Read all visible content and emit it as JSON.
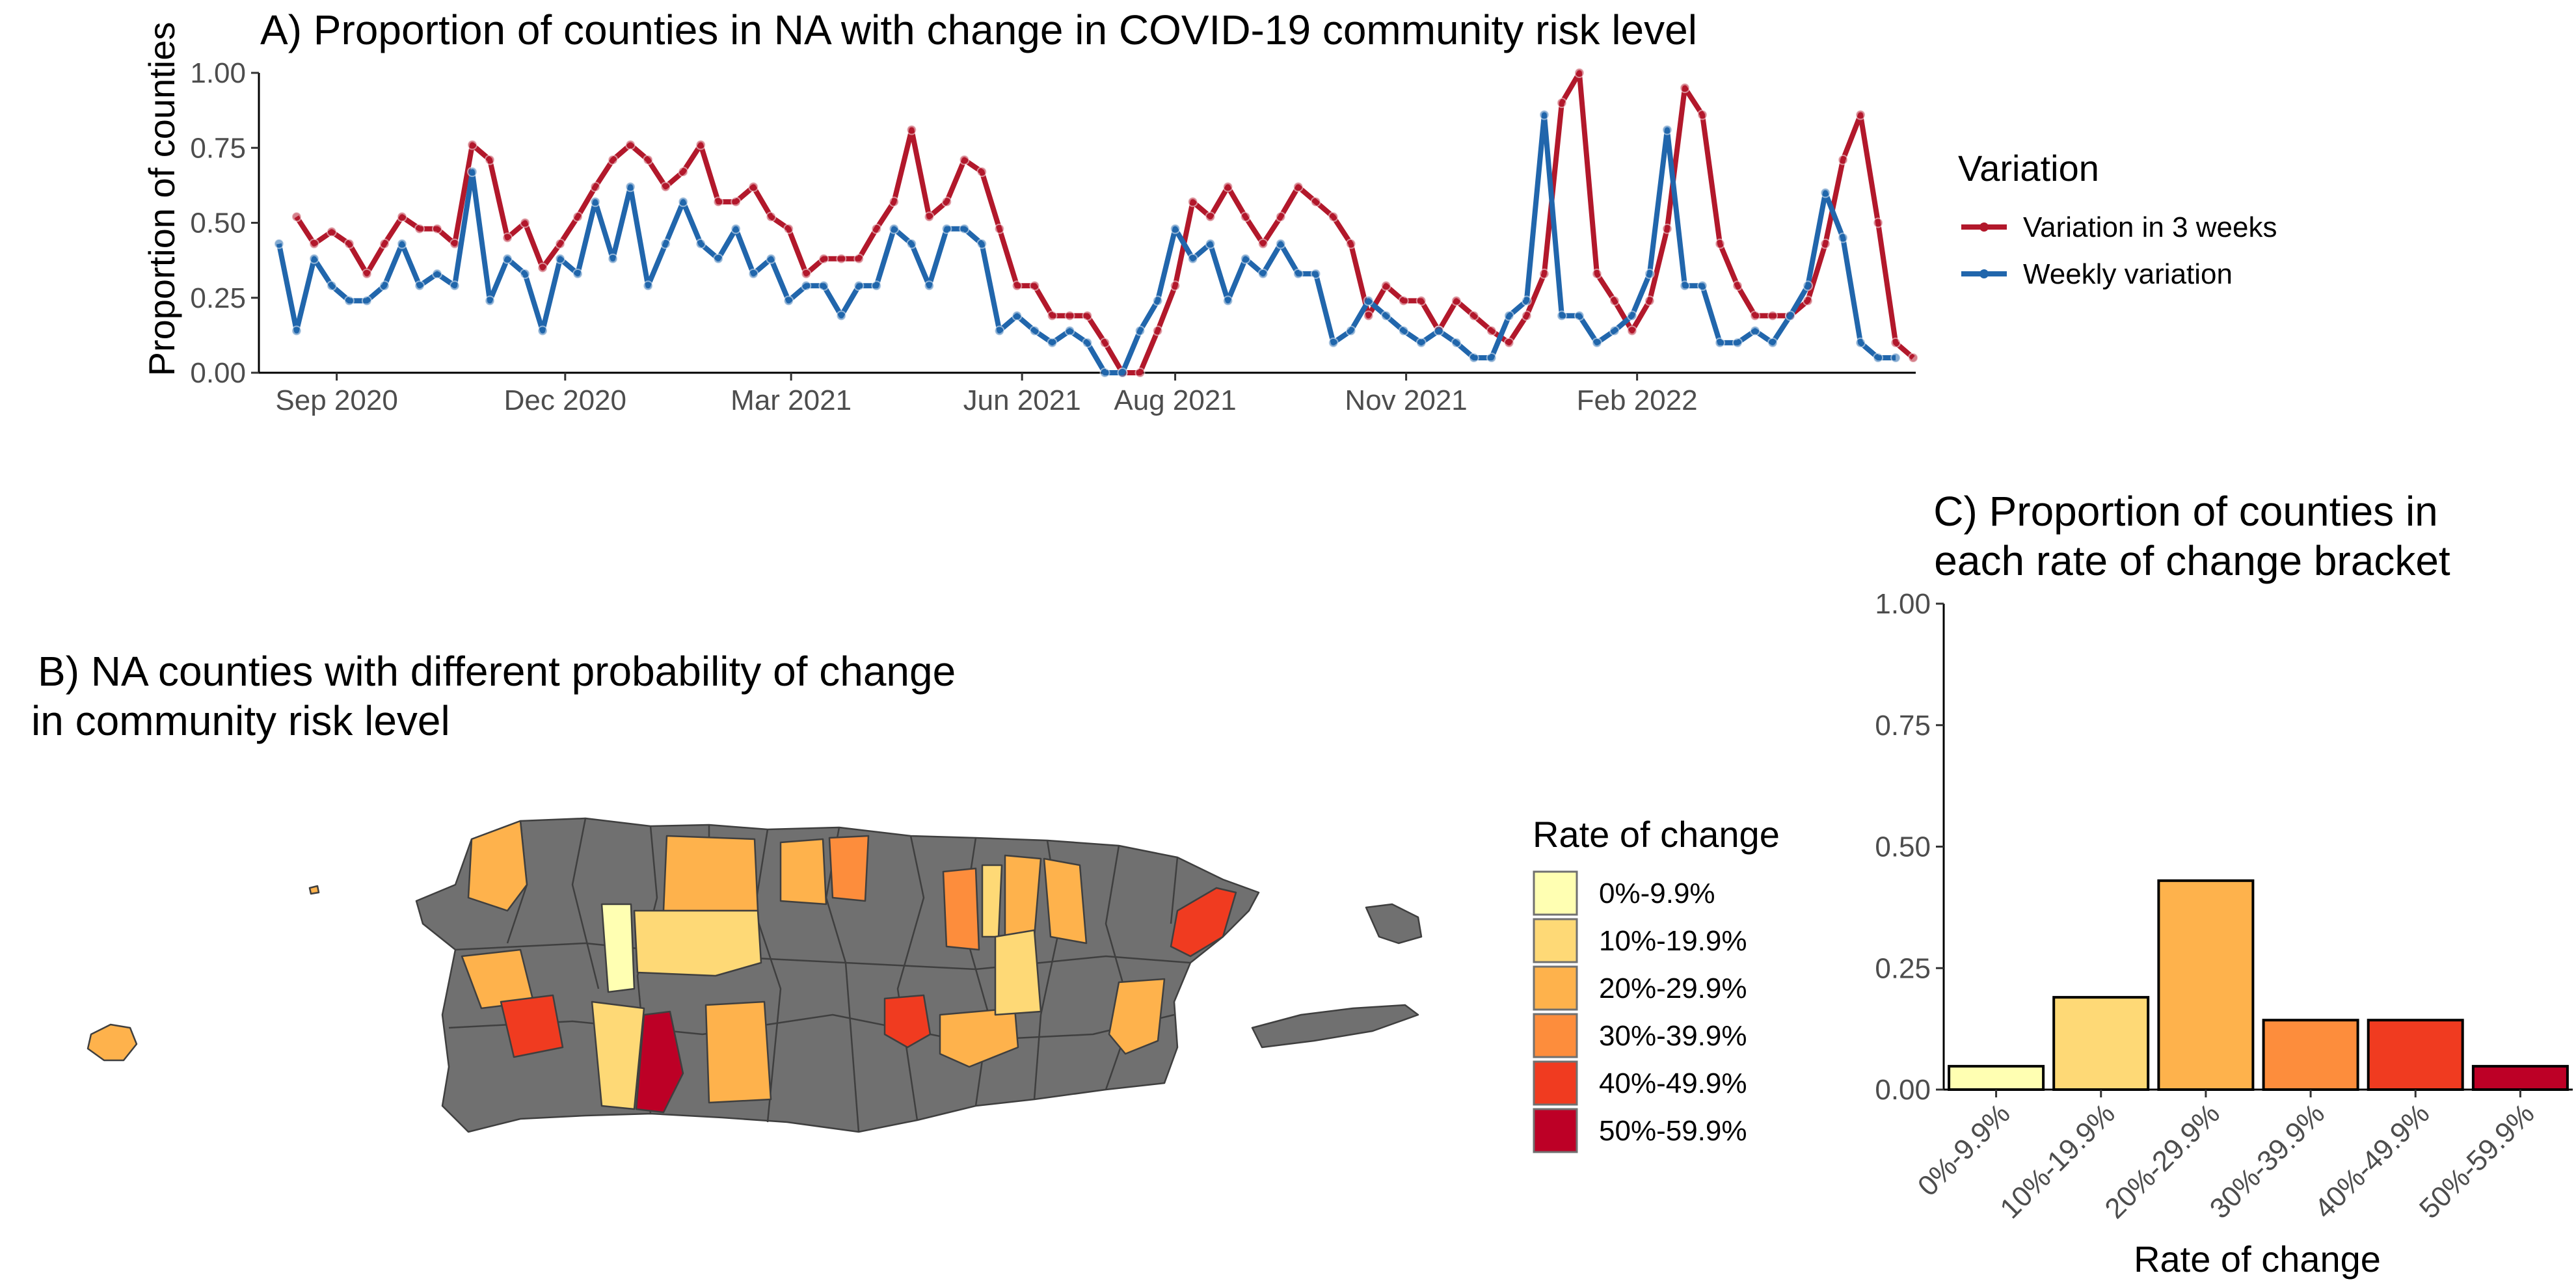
{
  "chart_data": [
    {
      "id": "A",
      "type": "line",
      "title": "A) Proportion of counties in NA with change in COVID-19 community risk level",
      "xlabel": "",
      "ylabel": "Proportion of counties",
      "ylim": [
        0,
        1
      ],
      "x_range": [
        "2020-08-01",
        "2022-05-23"
      ],
      "yticks": [
        "0.00",
        "0.25",
        "0.50",
        "0.75",
        "1.00"
      ],
      "xticks": [
        {
          "date": "2020-09-01",
          "label": "Sep 2020"
        },
        {
          "date": "2020-12-01",
          "label": "Dec 2020"
        },
        {
          "date": "2021-03-01",
          "label": "Mar 2021"
        },
        {
          "date": "2021-06-01",
          "label": "Jun 2021"
        },
        {
          "date": "2021-08-01",
          "label": "Aug 2021"
        },
        {
          "date": "2021-11-01",
          "label": "Nov 2021"
        },
        {
          "date": "2022-02-01",
          "label": "Feb 2022"
        }
      ],
      "grid": false,
      "legend": {
        "title": "Variation",
        "position": "right"
      },
      "series": [
        {
          "name": "Variation in 3 weeks",
          "color": "#b2182b",
          "start": "2020-08-16",
          "step_days": 7,
          "values": [
            0.52,
            0.43,
            0.47,
            0.43,
            0.33,
            0.43,
            0.52,
            0.48,
            0.48,
            0.43,
            0.76,
            0.71,
            0.45,
            0.5,
            0.35,
            0.43,
            0.52,
            0.62,
            0.71,
            0.76,
            0.71,
            0.62,
            0.67,
            0.76,
            0.57,
            0.57,
            0.62,
            0.52,
            0.48,
            0.33,
            0.38,
            0.38,
            0.38,
            0.48,
            0.57,
            0.81,
            0.52,
            0.57,
            0.71,
            0.67,
            0.48,
            0.29,
            0.29,
            0.19,
            0.19,
            0.19,
            0.1,
            0,
            0,
            0.14,
            0.29,
            0.57,
            0.52,
            0.62,
            0.52,
            0.43,
            0.52,
            0.62,
            0.57,
            0.52,
            0.43,
            0.19,
            0.29,
            0.24,
            0.24,
            0.14,
            0.24,
            0.19,
            0.14,
            0.1,
            0.19,
            0.33,
            0.9,
            1.0,
            0.33,
            0.24,
            0.14,
            0.24,
            0.48,
            0.95,
            0.86,
            0.43,
            0.29,
            0.19,
            0.19,
            0.19,
            0.24,
            0.43,
            0.71,
            0.86,
            0.5,
            0.1,
            0.05
          ]
        },
        {
          "name": "Weekly variation",
          "color": "#2166ac",
          "start": "2020-08-09",
          "step_days": 7,
          "values": [
            0.43,
            0.14,
            0.38,
            0.29,
            0.24,
            0.24,
            0.29,
            0.43,
            0.29,
            0.33,
            0.29,
            0.67,
            0.24,
            0.38,
            0.33,
            0.14,
            0.38,
            0.33,
            0.57,
            0.38,
            0.62,
            0.29,
            0.43,
            0.57,
            0.43,
            0.38,
            0.48,
            0.33,
            0.38,
            0.24,
            0.29,
            0.29,
            0.19,
            0.29,
            0.29,
            0.48,
            0.43,
            0.29,
            0.48,
            0.48,
            0.43,
            0.14,
            0.19,
            0.14,
            0.1,
            0.14,
            0.1,
            0,
            0,
            0.14,
            0.24,
            0.48,
            0.38,
            0.43,
            0.24,
            0.38,
            0.33,
            0.43,
            0.33,
            0.33,
            0.1,
            0.14,
            0.24,
            0.19,
            0.14,
            0.1,
            0.14,
            0.1,
            0.05,
            0.05,
            0.19,
            0.24,
            0.86,
            0.19,
            0.19,
            0.1,
            0.14,
            0.19,
            0.33,
            0.81,
            0.29,
            0.29,
            0.1,
            0.1,
            0.14,
            0.1,
            0.19,
            0.29,
            0.6,
            0.45,
            0.1,
            0.05,
            0.05
          ]
        }
      ]
    },
    {
      "id": "C",
      "type": "bar",
      "title": "C) Proportion of counties in each rate of change bracket",
      "title_lines": [
        "C) Proportion of counties in",
        "each rate of change bracket"
      ],
      "xlabel": "Rate of change",
      "ylabel": "",
      "ylim": [
        0,
        1
      ],
      "yticks": [
        "0.00",
        "0.25",
        "0.50",
        "0.75",
        "1.00"
      ],
      "categories": [
        "0%-9.9%",
        "10%-19.9%",
        "20%-29.9%",
        "30%-39.9%",
        "40%-49.9%",
        "50%-59.9%"
      ],
      "values": [
        0.048,
        0.19,
        0.43,
        0.143,
        0.143,
        0.048
      ],
      "colors": [
        "#ffffb2",
        "#fed976",
        "#feb24c",
        "#fd8d3c",
        "#f03b20",
        "#bd0026"
      ]
    }
  ],
  "map": {
    "title_lines": [
      "B)  NA counties with different probability of change",
      "in community risk level"
    ],
    "legend_title": "Rate of change",
    "legend_items": [
      {
        "label": "0%-9.9%",
        "color": "#ffffb2"
      },
      {
        "label": "10%-19.9%",
        "color": "#fed976"
      },
      {
        "label": "20%-29.9%",
        "color": "#feb24c"
      },
      {
        "label": "30%-39.9%",
        "color": "#fd8d3c"
      },
      {
        "label": "40%-49.9%",
        "color": "#f03b20"
      },
      {
        "label": "50%-59.9%",
        "color": "#bd0026"
      }
    ],
    "no_data_color": "#707070"
  }
}
